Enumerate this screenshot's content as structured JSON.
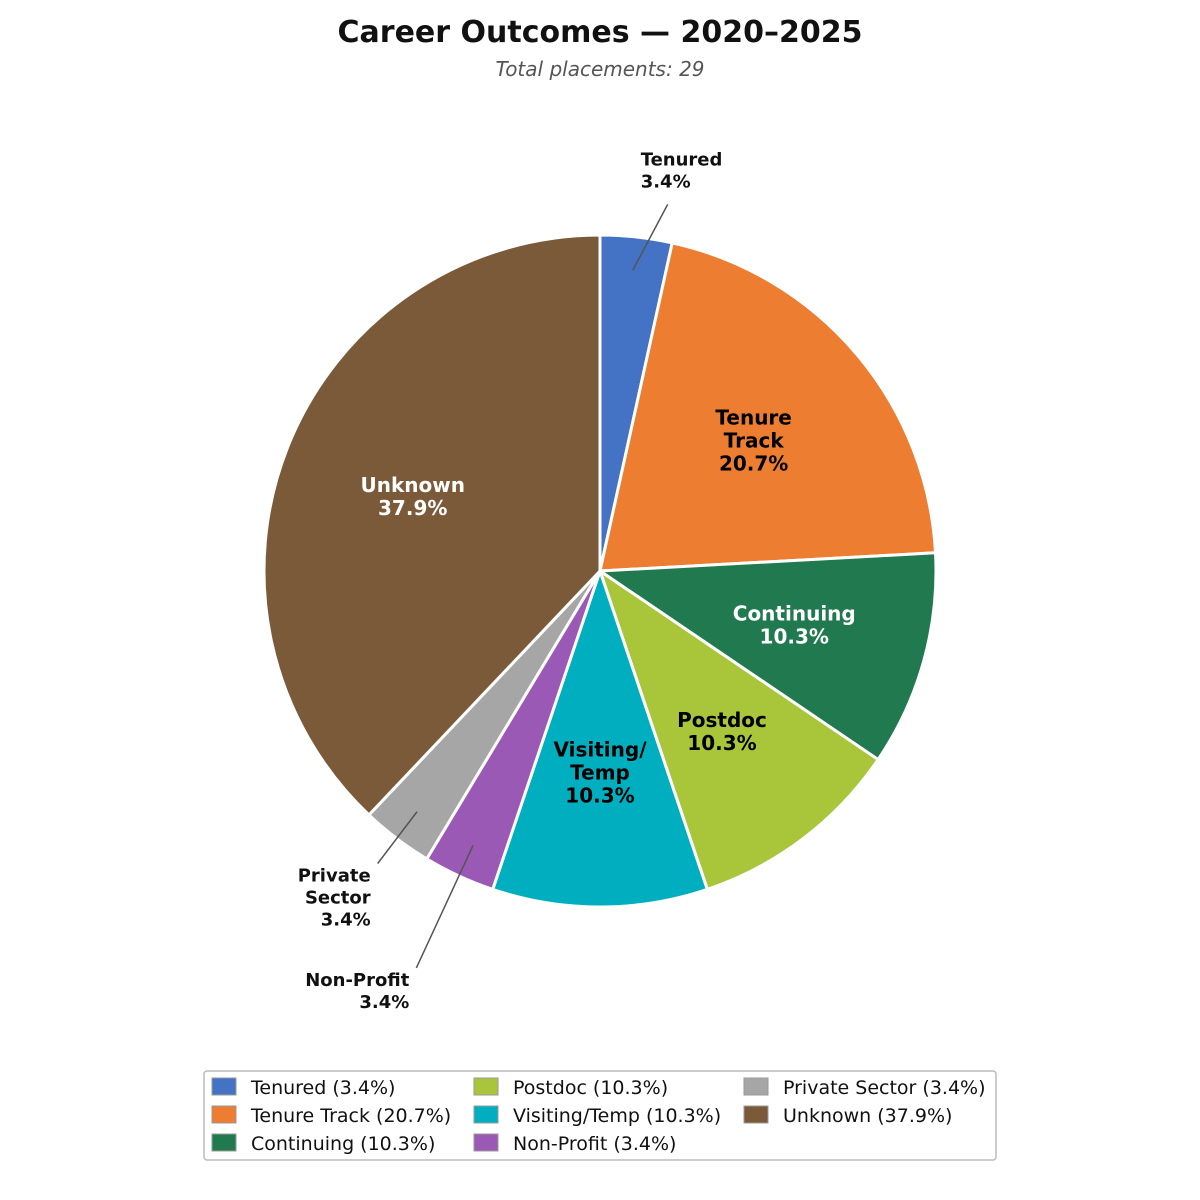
{
  "chart_data": {
    "type": "pie",
    "title": "Career Outcomes — 2020–2025",
    "subtitle": "Total placements: 29",
    "total": 29,
    "slices": [
      {
        "name": "Tenured",
        "label_lines": [
          "Tenured"
        ],
        "pct_text": "3.4%",
        "legend": "Tenured  (3.4%)",
        "value": 1,
        "color": "#4472C4",
        "label_color": "#000000",
        "label_position": "outside-right"
      },
      {
        "name": "Tenure Track",
        "label_lines": [
          "Tenure",
          "Track"
        ],
        "pct_text": "20.7%",
        "legend": "Tenure Track  (20.7%)",
        "value": 6,
        "color": "#ED7D31",
        "label_color": "#000000",
        "label_position": "inside"
      },
      {
        "name": "Continuing",
        "label_lines": [
          "Continuing"
        ],
        "pct_text": "10.3%",
        "legend": "Continuing  (10.3%)",
        "value": 3,
        "color": "#217A4F",
        "label_color": "#ffffff",
        "label_position": "inside"
      },
      {
        "name": "Postdoc",
        "label_lines": [
          "Postdoc"
        ],
        "pct_text": "10.3%",
        "legend": "Postdoc  (10.3%)",
        "value": 3,
        "color": "#A9C63A",
        "label_color": "#000000",
        "label_position": "inside"
      },
      {
        "name": "Visiting/Temp",
        "label_lines": [
          "Visiting/",
          "Temp"
        ],
        "pct_text": "10.3%",
        "legend": "Visiting/Temp  (10.3%)",
        "value": 3,
        "color": "#00AFBF",
        "label_color": "#000000",
        "label_position": "inside"
      },
      {
        "name": "Non-Profit",
        "label_lines": [
          "Non-Profit"
        ],
        "pct_text": "3.4%",
        "legend": "Non-Profit  (3.4%)",
        "value": 1,
        "color": "#9B59B6",
        "label_color": "#000000",
        "label_position": "outside-left"
      },
      {
        "name": "Private Sector",
        "label_lines": [
          "Private",
          "Sector"
        ],
        "pct_text": "3.4%",
        "legend": "Private Sector  (3.4%)",
        "value": 1,
        "color": "#A6A6A6",
        "label_color": "#000000",
        "label_position": "outside-left"
      },
      {
        "name": "Unknown",
        "label_lines": [
          "Unknown"
        ],
        "pct_text": "37.9%",
        "legend": "Unknown  (37.9%)",
        "value": 11,
        "color": "#7B5A3A",
        "label_color": "#ffffff",
        "label_position": "inside"
      }
    ],
    "start_angle": "12 o'clock",
    "direction": "clockwise",
    "legend_position": "bottom-center",
    "legend_columns": 3
  }
}
